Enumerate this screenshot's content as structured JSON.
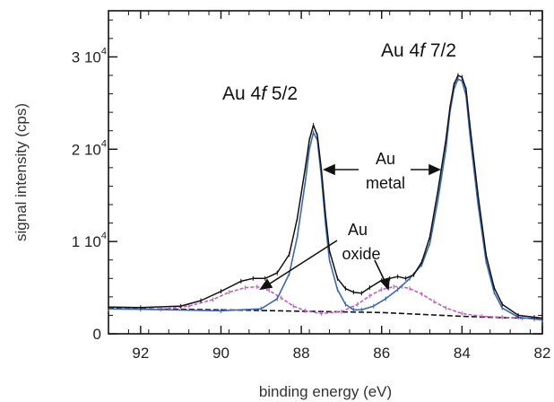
{
  "chart_data": {
    "type": "line",
    "xlabel": "binding energy (eV)",
    "ylabel": "signal intensity (cps)",
    "xlim": [
      92.8,
      82
    ],
    "ylim": [
      0,
      35000
    ],
    "x_axis_reversed": true,
    "x_ticks": [
      {
        "value": 92,
        "label": "92"
      },
      {
        "value": 90,
        "label": "90"
      },
      {
        "value": 88,
        "label": "88"
      },
      {
        "value": 86,
        "label": "86"
      },
      {
        "value": 84,
        "label": "84"
      },
      {
        "value": 82,
        "label": "82"
      }
    ],
    "y_ticks": [
      {
        "value": 0,
        "mantissa": "0",
        "exp": ""
      },
      {
        "value": 10000,
        "mantissa": "1 10",
        "exp": "4"
      },
      {
        "value": 20000,
        "mantissa": "2 10",
        "exp": "4"
      },
      {
        "value": 30000,
        "mantissa": "3 10",
        "exp": "4"
      }
    ],
    "grid": false,
    "series": [
      {
        "role": "measured",
        "color": "#111111",
        "x": [
          92.8,
          92,
          91,
          90.5,
          90,
          89.5,
          89.2,
          88.9,
          88.6,
          88.3,
          88.1,
          87.9,
          87.8,
          87.7,
          87.6,
          87.5,
          87.4,
          87.3,
          87.1,
          86.9,
          86.7,
          86.5,
          86.3,
          86.0,
          85.8,
          85.6,
          85.4,
          85.2,
          85.0,
          84.8,
          84.6,
          84.4,
          84.3,
          84.2,
          84.1,
          84.0,
          83.9,
          83.8,
          83.6,
          83.4,
          83.2,
          83.0,
          82.6,
          82.2,
          82.0
        ],
        "y": [
          2900,
          2850,
          3000,
          3600,
          4600,
          5700,
          6000,
          6000,
          6600,
          8600,
          12500,
          18000,
          21000,
          22600,
          21500,
          17800,
          13000,
          9000,
          6000,
          4900,
          4500,
          4400,
          5000,
          5800,
          6000,
          6200,
          6000,
          6400,
          7800,
          10500,
          15500,
          21000,
          24500,
          27000,
          28000,
          27800,
          26500,
          22500,
          15000,
          8500,
          5000,
          3200,
          2000,
          1800,
          1700
        ]
      },
      {
        "role": "Au metal fit",
        "color": "#3b67b5",
        "x": [
          92.8,
          92,
          90,
          89.0,
          88.6,
          88.3,
          88.1,
          87.9,
          87.8,
          87.7,
          87.6,
          87.5,
          87.4,
          87.3,
          87.1,
          86.9,
          86.7,
          86.5,
          86.2,
          85.9,
          85.6,
          85.3,
          85.0,
          84.8,
          84.6,
          84.4,
          84.3,
          84.2,
          84.1,
          84.0,
          83.9,
          83.8,
          83.6,
          83.4,
          83.2,
          83.0,
          82.6,
          82.2,
          82.0
        ],
        "y": [
          2700,
          2650,
          2500,
          2700,
          3800,
          6500,
          10500,
          16500,
          20000,
          21800,
          21000,
          17000,
          12000,
          8000,
          4800,
          3200,
          2600,
          2600,
          3000,
          3800,
          4800,
          6000,
          7500,
          9800,
          14500,
          20000,
          24000,
          26500,
          27600,
          27400,
          25800,
          21500,
          14000,
          7800,
          4500,
          2800,
          1800,
          1600,
          1500
        ]
      },
      {
        "role": "Au oxide fit",
        "color": "#c060c0",
        "x": [
          92.8,
          91.5,
          90.8,
          90.2,
          89.8,
          89.4,
          89.1,
          88.8,
          88.5,
          88.2,
          87.9,
          87.5,
          87.0,
          86.6,
          86.3,
          86.0,
          85.7,
          85.5,
          85.3,
          85.0,
          84.7,
          84.4,
          84.0,
          83.5,
          83.0,
          82.5,
          82.0
        ],
        "y": [
          2700,
          2650,
          3000,
          3700,
          4500,
          5000,
          5100,
          4700,
          3900,
          3000,
          2500,
          2200,
          2400,
          3200,
          4100,
          4800,
          5100,
          5100,
          4900,
          4300,
          3500,
          2800,
          2200,
          1900,
          1800,
          1700,
          1600
        ]
      },
      {
        "role": "background",
        "color": "#111111",
        "dashed": true,
        "x": [
          92.8,
          90,
          88,
          86,
          84,
          83,
          82
        ],
        "y": [
          2750,
          2600,
          2450,
          2300,
          1900,
          1750,
          1650
        ]
      }
    ],
    "annotations": [
      {
        "name": "au-4f-52",
        "text": "Au 4",
        "italic": "f",
        "rest": " 5/2"
      },
      {
        "name": "au-4f-72",
        "text": "Au 4",
        "italic": "f",
        "rest": " 7/2"
      },
      {
        "name": "au-metal",
        "lines": [
          "Au",
          "metal"
        ]
      },
      {
        "name": "au-oxide",
        "lines": [
          "Au",
          "oxide"
        ]
      }
    ]
  }
}
